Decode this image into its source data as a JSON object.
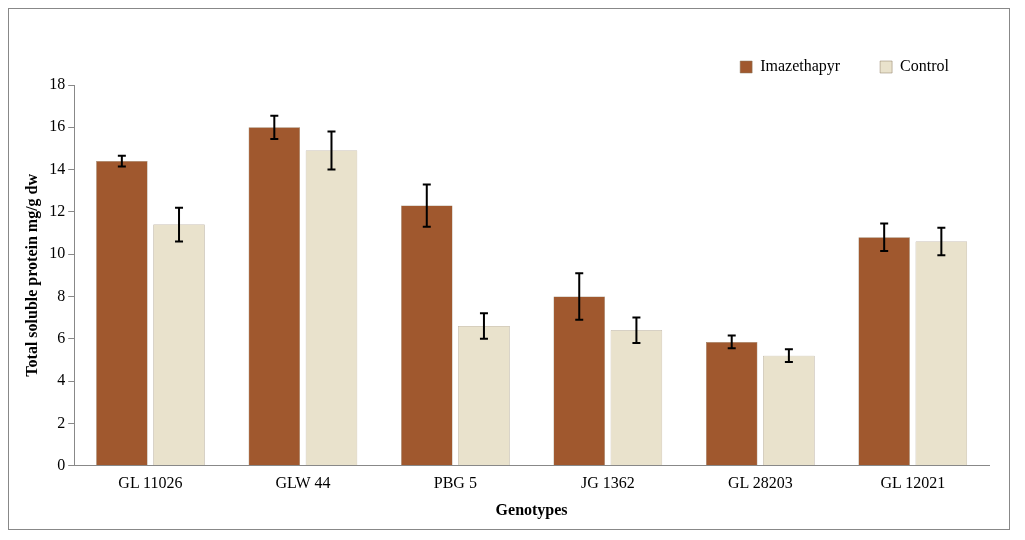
{
  "chart_data": {
    "type": "bar",
    "xlabel": "Genotypes",
    "ylabel": "Total soluble protein mg/g dw",
    "categories": [
      "GL 11026",
      "GLW 44",
      "PBG 5",
      "JG 1362",
      "GL 28203",
      "GL 12021"
    ],
    "series": [
      {
        "name": "Imazethapyr",
        "color": "#a0582e",
        "values": [
          14.4,
          16.0,
          12.3,
          8.0,
          5.85,
          10.8
        ],
        "errors": [
          0.25,
          0.55,
          1.0,
          1.1,
          0.3,
          0.65
        ]
      },
      {
        "name": "Control",
        "color": "#e9e2cc",
        "values": [
          11.4,
          14.9,
          6.6,
          6.4,
          5.2,
          10.6
        ],
        "errors": [
          0.8,
          0.9,
          0.6,
          0.6,
          0.3,
          0.65
        ]
      }
    ],
    "ylim": [
      0,
      18
    ],
    "yticks": [
      0,
      2,
      4,
      6,
      8,
      10,
      12,
      14,
      16,
      18
    ],
    "grid": false,
    "legend": "top right"
  }
}
